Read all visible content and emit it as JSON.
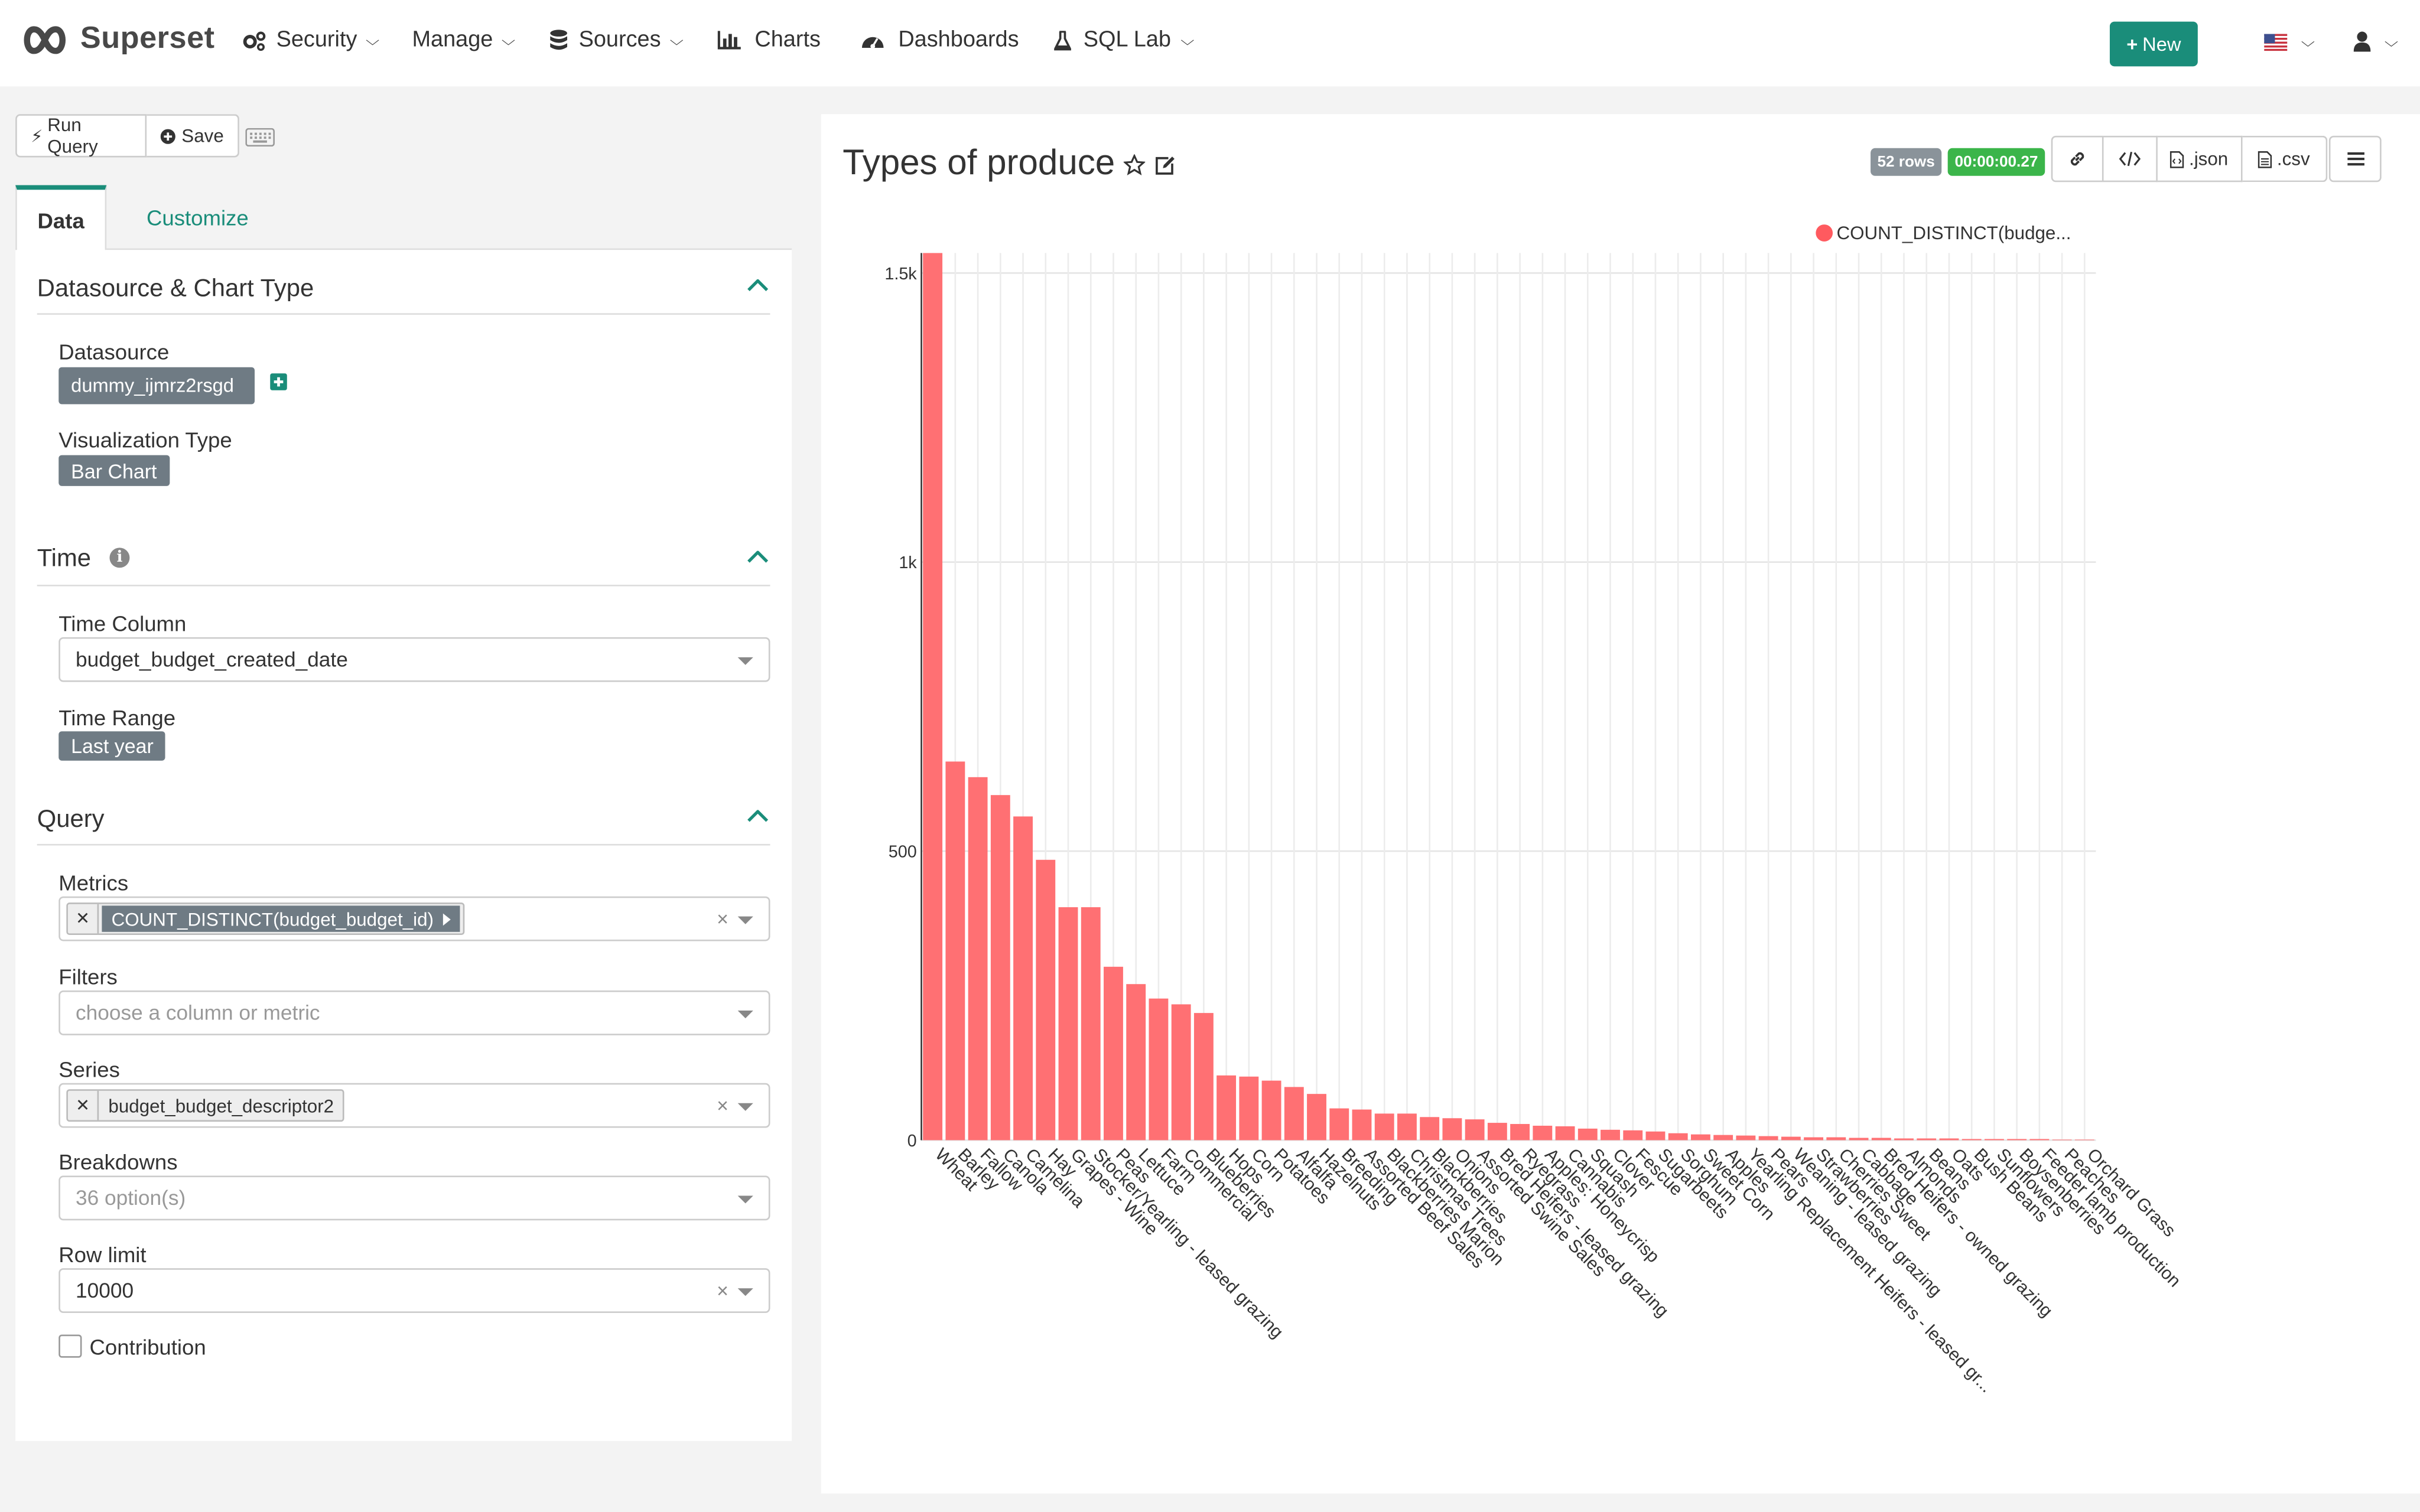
{
  "navbar": {
    "brand": "Superset",
    "menu": [
      {
        "label": "Security",
        "icon": "cogs-icon",
        "dropdown": true
      },
      {
        "label": "Manage",
        "icon": "",
        "dropdown": true
      },
      {
        "label": "Sources",
        "icon": "database-icon",
        "dropdown": true
      },
      {
        "label": "Charts",
        "icon": "bar-chart-icon",
        "dropdown": false
      },
      {
        "label": "Dashboards",
        "icon": "dashboard-icon",
        "dropdown": false
      },
      {
        "label": "SQL Lab",
        "icon": "flask-icon",
        "dropdown": true
      }
    ],
    "new_button": "New",
    "language_flag": "us-flag-icon",
    "user_icon": "user-icon"
  },
  "toolbar": {
    "run_query": "Run Query",
    "save": "Save"
  },
  "tabs": {
    "data": "Data",
    "customize": "Customize",
    "active": "Data"
  },
  "sections": {
    "datasource_chart_type": {
      "title": "Datasource & Chart Type",
      "datasource_label": "Datasource",
      "datasource_value": "dummy_ijmrz2rsgd",
      "viz_type_label": "Visualization Type",
      "viz_type_value": "Bar Chart"
    },
    "time": {
      "title": "Time",
      "time_column_label": "Time Column",
      "time_column_value": "budget_budget_created_date",
      "time_range_label": "Time Range",
      "time_range_value": "Last year"
    },
    "query": {
      "title": "Query",
      "metrics_label": "Metrics",
      "metrics_value": "COUNT_DISTINCT(budget_budget_id)",
      "filters_label": "Filters",
      "filters_placeholder": "choose a column or metric",
      "series_label": "Series",
      "series_value": "budget_budget_descriptor2",
      "breakdowns_label": "Breakdowns",
      "breakdowns_placeholder": "36 option(s)",
      "row_limit_label": "Row limit",
      "row_limit_value": "10000",
      "contribution_label": "Contribution",
      "contribution_checked": false
    }
  },
  "chart_header": {
    "title": "Types of produce",
    "rows_badge": "52 rows",
    "time_badge": "00:00:00.27",
    "json_label": ".json",
    "csv_label": ".csv"
  },
  "chart_data": {
    "type": "bar",
    "legend": "COUNT_DISTINCT(budge...",
    "legend_position": "top-right",
    "bar_color": "#ff7073",
    "legend_color": "#ff5a5f",
    "grid": true,
    "ylim": [
      0,
      1500
    ],
    "yticks": [
      0,
      500,
      1000,
      1500
    ],
    "ytick_labels": [
      "0",
      "500",
      "1k",
      "1.5k"
    ],
    "categories": [
      "Wheat",
      "Barley",
      "Fallow",
      "Canola",
      "Camelina",
      "Hay",
      "Grapes - Wine",
      "Stocker/Yearling - leased grazing",
      "Peas",
      "Lettuce",
      "Farm",
      "Commercial",
      "Blueberries",
      "Hops",
      "Corn",
      "Potatoes",
      "Alfalfa",
      "Hazelnuts",
      "Breeding",
      "Assorted Beef Sales",
      "Blackberries Marion",
      "Christmas Trees",
      "Blackberries",
      "Onions",
      "Assorted Swine Sales",
      "Bred Heifers - leased grazing",
      "Ryegrass",
      "Apples: Honeycrisp",
      "Cannabis",
      "Squash",
      "Clover",
      "Fescue",
      "Sugarbeets",
      "Sorghum",
      "Sweet Corn",
      "Apples",
      "Yearling Replacement Heifers - leased gr...",
      "Pears",
      "Weaning - leased grazing",
      "Strawberries",
      "Cherries Sweet",
      "Cabbage",
      "Bred Heifers - owned grazing",
      "Almonds",
      "Beans",
      "Oats",
      "Bush Beans",
      "Sunflowers",
      "Boysenberries",
      "Feeder lamb production",
      "Peaches",
      "Orchard Grass"
    ],
    "values": [
      1540,
      655,
      628,
      597,
      560,
      485,
      403,
      403,
      300,
      270,
      245,
      235,
      220,
      112,
      110,
      103,
      92,
      80,
      55,
      53,
      46,
      46,
      40,
      38,
      36,
      30,
      28,
      25,
      24,
      20,
      18,
      17,
      15,
      12,
      10,
      9,
      8,
      7,
      6,
      5,
      5,
      4,
      4,
      3,
      3,
      3,
      2,
      2,
      2,
      2,
      1,
      1
    ]
  }
}
